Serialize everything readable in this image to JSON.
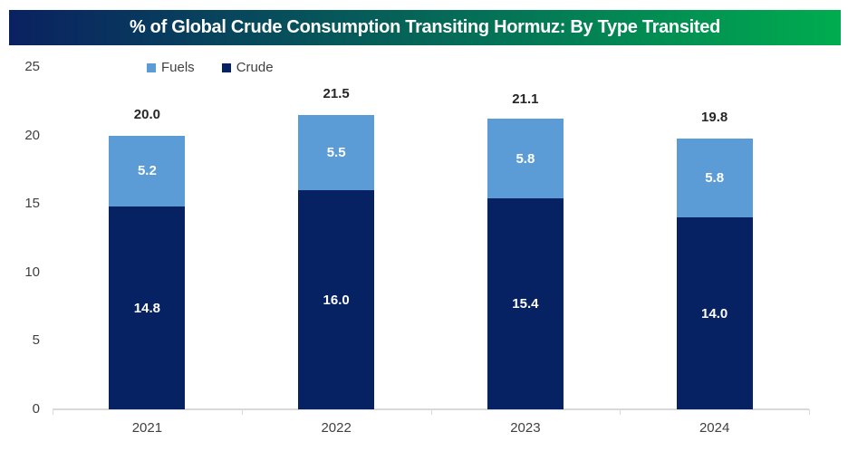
{
  "title": {
    "text": "% of Global Crude Consumption Transiting Hormuz: By Type Transited",
    "gradient_left": "#0A2161",
    "gradient_right": "#00AC4F",
    "text_color": "#FFFFFF"
  },
  "legend": {
    "items": [
      {
        "label": "Fuels",
        "color": "#5B9CD6"
      },
      {
        "label": "Crude",
        "color": "#062263"
      }
    ]
  },
  "chart_data": {
    "type": "bar",
    "stacked": true,
    "title": "% of Global Crude Consumption Transiting Hormuz: By Type Transited",
    "categories": [
      "2021",
      "2022",
      "2023",
      "2024"
    ],
    "series": [
      {
        "name": "Crude",
        "color": "#062263",
        "values": [
          14.8,
          16.0,
          15.4,
          14.0
        ],
        "labels": [
          "14.8",
          "16.0",
          "15.4",
          "14.0"
        ],
        "label_color": "#FFFFFF"
      },
      {
        "name": "Fuels",
        "color": "#5B9CD6",
        "values": [
          5.2,
          5.5,
          5.8,
          5.8
        ],
        "labels": [
          "5.2",
          "5.5",
          "5.8",
          "5.8"
        ],
        "label_color": "#FFFFFF"
      }
    ],
    "totals": [
      20.0,
      21.5,
      21.1,
      19.8
    ],
    "total_labels": [
      "20.0",
      "21.5",
      "21.1",
      "19.8"
    ],
    "xlabel": "",
    "ylabel": "",
    "ylim": [
      0,
      25
    ],
    "yticks": [
      0,
      5,
      10,
      15,
      20,
      25
    ],
    "grid": false,
    "legend_position": "inside-top-left",
    "axis_line_color": "#D9D9D9",
    "tick_label_color": "#404040",
    "total_label_color": "#262626"
  }
}
